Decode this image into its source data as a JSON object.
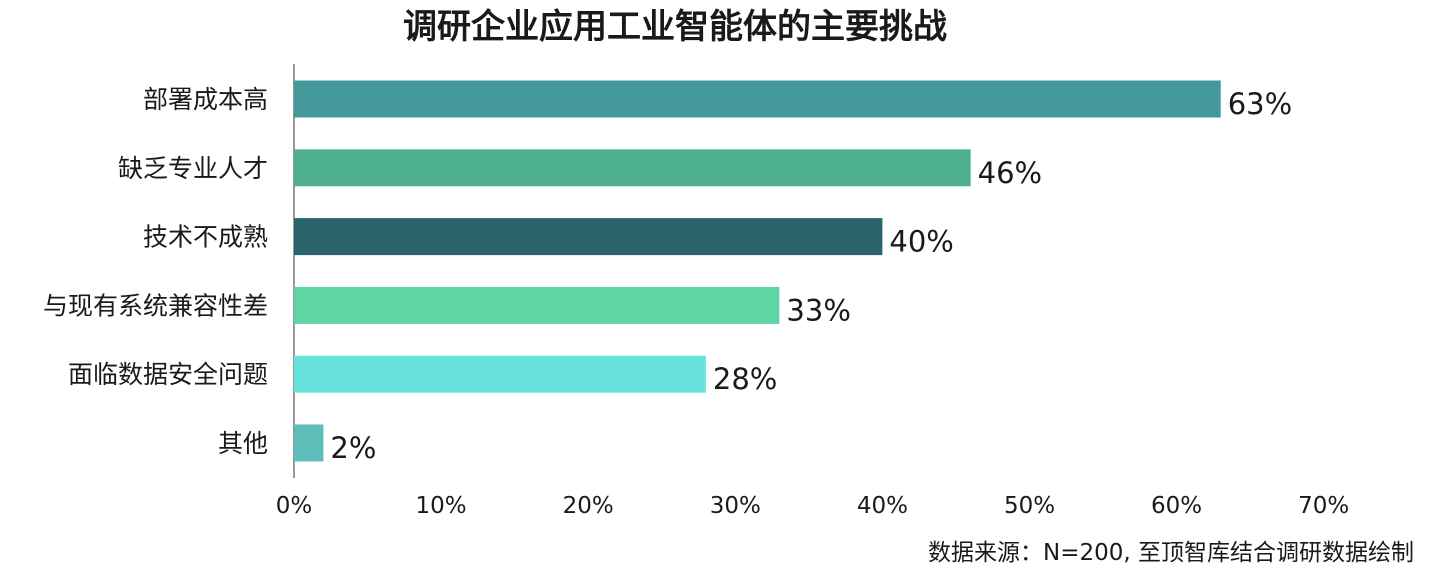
{
  "chart_data": {
    "type": "bar",
    "orientation": "horizontal",
    "title": "调研企业应用工业智能体的主要挑战",
    "categories": [
      "部署成本高",
      "缺乏专业人才",
      "技术不成熟",
      "与现有系统兼容性差",
      "面临数据安全问题",
      "其他"
    ],
    "values": [
      63,
      46,
      40,
      33,
      28,
      2
    ],
    "value_labels": [
      "63%",
      "46%",
      "40%",
      "33%",
      "28%",
      "2%"
    ],
    "colors": [
      "#44989a",
      "#4faf91",
      "#2a636c",
      "#60d5a4",
      "#68e2dc",
      "#5dbdb8"
    ],
    "xlim": [
      0,
      70
    ],
    "x_ticks": [
      "0%",
      "10%",
      "20%",
      "30%",
      "40%",
      "50%",
      "60%",
      "70%"
    ],
    "xlabel": "",
    "ylabel": "",
    "grid": false,
    "legend": "none",
    "source": "数据来源：N=200, 至顶智库结合调研数据绘制"
  }
}
